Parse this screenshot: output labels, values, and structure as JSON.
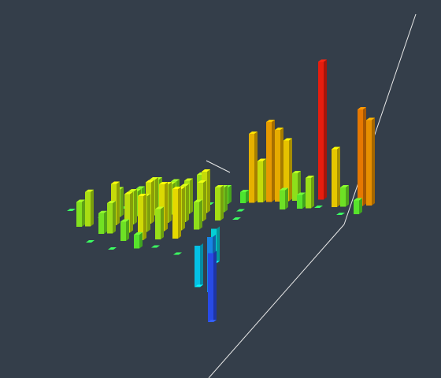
{
  "chart_data": {
    "type": "bar3d",
    "value_range": [
      -60,
      100
    ],
    "colors": [
      "#4010ff",
      "#00e4ff",
      "#3cff3c",
      "#fff000",
      "#ff8c00",
      "#ff2010"
    ],
    "series": [
      {
        "x": [
          0,
          1,
          0,
          1,
          0,
          2,
          2,
          3,
          3,
          4,
          4,
          5,
          5,
          5,
          6,
          6,
          6,
          7,
          7,
          7,
          8,
          8,
          8,
          9,
          9,
          9,
          10,
          10,
          10,
          11,
          11,
          12,
          12,
          12,
          13,
          13,
          13,
          14,
          14,
          15,
          15,
          15,
          16,
          16,
          17,
          18,
          18,
          19,
          21,
          22,
          23,
          24,
          25,
          26,
          24,
          26,
          27,
          29,
          30,
          31,
          32,
          33,
          34,
          20,
          28,
          30
        ],
        "y": [
          0,
          1,
          2,
          2,
          4,
          3,
          5,
          1,
          3,
          2,
          4,
          1,
          3,
          5,
          0,
          2,
          4,
          1,
          3,
          5,
          0,
          2,
          4,
          1,
          3,
          6,
          0,
          2,
          4,
          1,
          3,
          0,
          2,
          5,
          1,
          3,
          6,
          4,
          2,
          0,
          1,
          3,
          0,
          2,
          1,
          0,
          2,
          1,
          0,
          0,
          0,
          0,
          0,
          0,
          1,
          1,
          1,
          0,
          1,
          1,
          2,
          1,
          1,
          0,
          1,
          2
        ],
        "values": [
          0,
          0,
          18,
          25,
          0,
          15,
          0,
          0,
          22,
          30,
          14,
          20,
          28,
          10,
          0,
          24,
          32,
          18,
          26,
          0,
          14,
          30,
          22,
          26,
          34,
          0,
          20,
          28,
          36,
          22,
          30,
          18,
          26,
          -30,
          24,
          20,
          -50,
          -40,
          28,
          22,
          30,
          -25,
          0,
          24,
          18,
          12,
          0,
          0,
          50,
          30,
          58,
          52,
          44,
          20,
          14,
          10,
          22,
          100,
          42,
          14,
          10,
          70,
          62,
          8,
          0,
          0
        ]
      }
    ]
  }
}
